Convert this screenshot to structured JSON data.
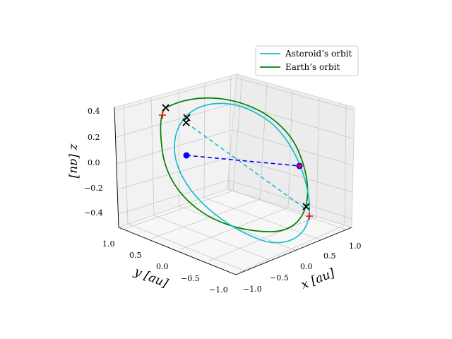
{
  "chart_data": {
    "type": "line",
    "projection": "3d",
    "xlabel": "x [au]",
    "ylabel": "y [au]",
    "zlabel": "z [au]",
    "x_ticks": [
      "−1.0",
      "−0.5",
      "0.0",
      "0.5",
      "1.0"
    ],
    "y_ticks": [
      "1.0",
      "0.5",
      "0.0",
      "−0.5",
      "−1.0"
    ],
    "z_ticks": [
      "0.4",
      "0.2",
      "0.0",
      "−0.2",
      "−0.4"
    ],
    "legend_position": "top-right",
    "grid": true,
    "series": [
      {
        "name": "Asteroid’s orbit",
        "color": "#17becf"
      },
      {
        "name": "Earth’s orbit",
        "color": "#008000"
      }
    ]
  }
}
